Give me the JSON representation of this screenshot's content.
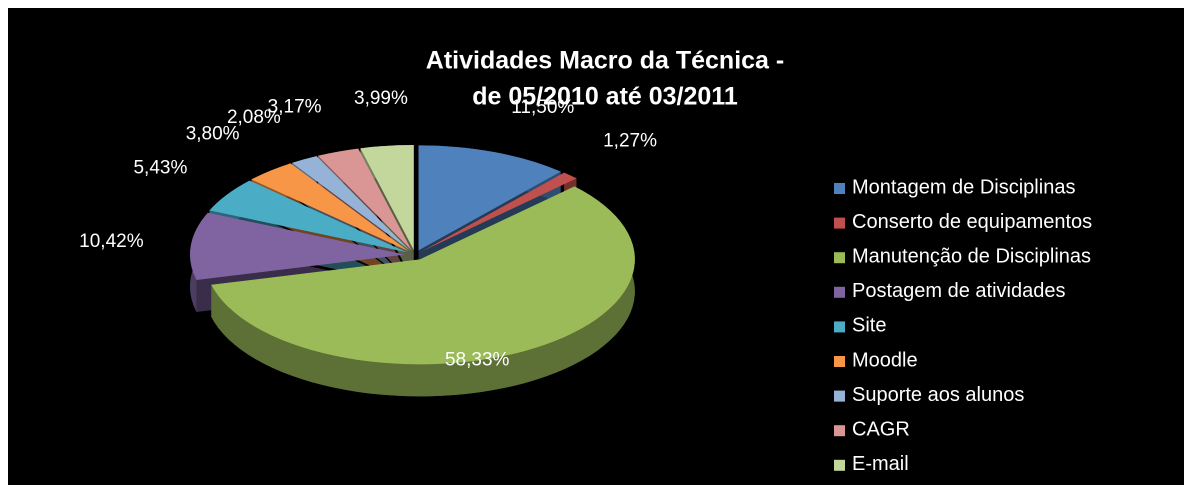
{
  "chart_data": {
    "type": "pie",
    "title": [
      "Atividades Macro da Técnica -",
      "de 05/2010 até 03/2011"
    ],
    "categories": [
      "Montagem de Disciplinas",
      "Conserto de equipamentos",
      "Manutenção de Disciplinas",
      "Postagem de atividades",
      "Site",
      "Moodle",
      "Suporte aos alunos",
      "CAGR",
      "E-mail"
    ],
    "values": [
      11.5,
      1.27,
      58.33,
      10.42,
      5.43,
      3.8,
      2.08,
      3.17,
      3.99
    ],
    "value_labels": [
      "11,50%",
      "1,27%",
      "58,33%",
      "10,42%",
      "5,43%",
      "3,80%",
      "2,08%",
      "3,17%",
      "3,99%"
    ],
    "colors": [
      "#4f81bd",
      "#c0504d",
      "#9bbb59",
      "#8064a2",
      "#4bacc6",
      "#f79646",
      "#95b3d7",
      "#d99694",
      "#c3d69b"
    ],
    "legend": "right"
  }
}
